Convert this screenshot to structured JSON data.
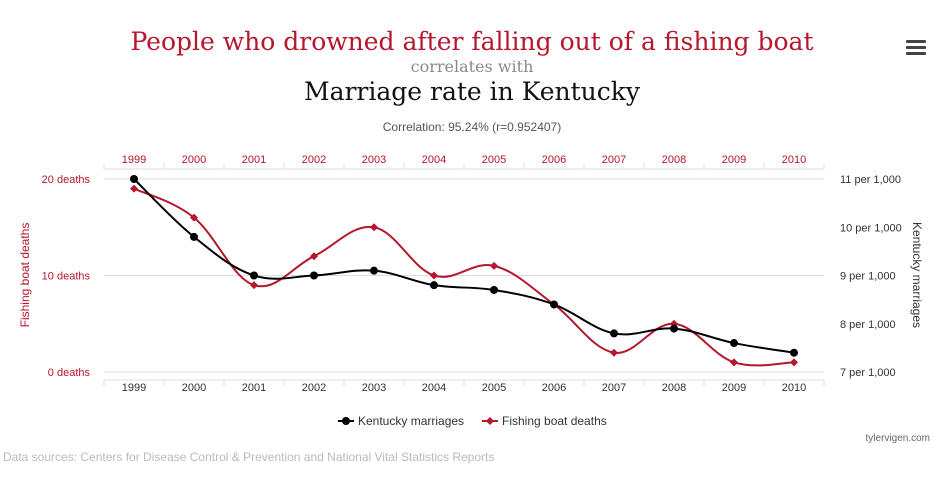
{
  "header": {
    "title_primary": "People who drowned after falling out of a fishing boat",
    "connector": "correlates with",
    "title_secondary": "Marriage rate in Kentucky",
    "correlation": "Correlation: 95.24% (r=0.952407)"
  },
  "menu_icon": "hamburger-menu-icon",
  "footer": {
    "credit": "tylervigen.com",
    "sources": "Data sources: Centers for Disease Control & Prevention and National Vital Statistics Reports"
  },
  "colors": {
    "fishing": "#b5172c",
    "kentucky": "#000000",
    "grid": "#dcdcdc",
    "axis_text_red": "#b5172c",
    "axis_text_dark": "#333333"
  },
  "chart_data": {
    "type": "line",
    "categories": [
      "1999",
      "2000",
      "2001",
      "2002",
      "2003",
      "2004",
      "2005",
      "2006",
      "2007",
      "2008",
      "2009",
      "2010"
    ],
    "y_left": {
      "label": "Fishing boat deaths",
      "ticks": [
        {
          "value": 0,
          "label": "0 deaths"
        },
        {
          "value": 10,
          "label": "10 deaths"
        },
        {
          "value": 20,
          "label": "20 deaths"
        }
      ],
      "range": [
        0,
        20
      ]
    },
    "y_right": {
      "label": "Kentucky marriages",
      "ticks": [
        {
          "value": 7,
          "label": "7 per 1,000"
        },
        {
          "value": 8,
          "label": "8 per 1,000"
        },
        {
          "value": 9,
          "label": "9 per 1,000"
        },
        {
          "value": 10,
          "label": "10 per 1,000"
        },
        {
          "value": 11,
          "label": "11 per 1,000"
        }
      ],
      "range": [
        7,
        11
      ]
    },
    "grid": true,
    "legend_position": "bottom-center",
    "series": [
      {
        "name": "Kentucky marriages",
        "axis": "right",
        "marker": "circle",
        "values": [
          11.0,
          9.8,
          9.0,
          9.0,
          9.1,
          8.8,
          8.7,
          8.4,
          7.8,
          7.9,
          7.6,
          7.4
        ]
      },
      {
        "name": "Fishing boat deaths",
        "axis": "left",
        "marker": "diamond",
        "values": [
          19,
          16,
          9,
          12,
          15,
          10,
          11,
          7,
          2,
          5,
          1,
          1
        ]
      }
    ]
  }
}
